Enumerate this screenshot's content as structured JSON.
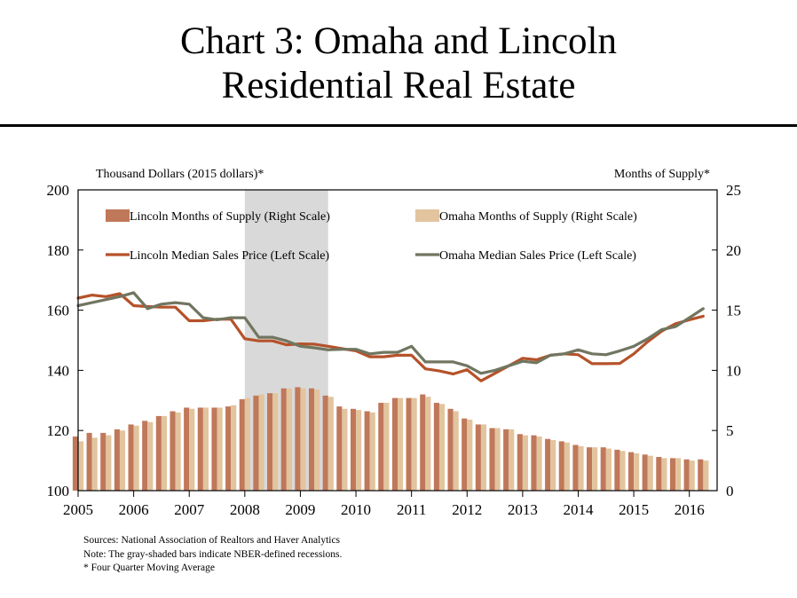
{
  "title_line1": "Chart 3: Omaha and Lincoln",
  "title_line2": "Residential Real Estate",
  "notes": {
    "sources": "Sources: National Association of Realtors and Haver Analytics",
    "note": "Note: The gray-shaded bars indicate NBER-defined recessions.",
    "footnote": "* Four Quarter Moving Average"
  },
  "colors": {
    "lincoln_bar": "#C0785A",
    "omaha_bar": "#E2C49E",
    "lincoln_line": "#B5522A",
    "omaha_line": "#707660",
    "recession": "#D9D9D9"
  },
  "chart_data": {
    "type": "bar+line",
    "ylabel_left": "Thousand Dollars (2015 dollars)*",
    "ylabel_right": "Months of Supply*",
    "ylim_left": [
      100,
      200
    ],
    "ylim_right": [
      0,
      25
    ],
    "yticks_left": [
      "100",
      "120",
      "140",
      "160",
      "180",
      "200"
    ],
    "yticks_right": [
      "0",
      "5",
      "10",
      "15",
      "20",
      "25"
    ],
    "xlim": [
      2005,
      2016.5
    ],
    "xticks": [
      "2005",
      "2006",
      "2007",
      "2008",
      "2009",
      "2010",
      "2011",
      "2012",
      "2013",
      "2014",
      "2015",
      "2016"
    ],
    "recession": [
      2008,
      2009.5
    ],
    "legend": {
      "lincoln_bar": "Lincoln Months of Supply (Right Scale)",
      "omaha_bar": "Omaha Months of Supply (Right Scale)",
      "lincoln_line": "Lincoln Median Sales Price (Left Scale)",
      "omaha_line": "Omaha Median Sales Price (Left Scale)"
    },
    "x": [
      2005,
      2005.25,
      2005.5,
      2005.75,
      2006,
      2006.25,
      2006.5,
      2006.75,
      2007,
      2007.25,
      2007.5,
      2007.75,
      2008,
      2008.25,
      2008.5,
      2008.75,
      2009,
      2009.25,
      2009.5,
      2009.75,
      2010,
      2010.25,
      2010.5,
      2010.75,
      2011,
      2011.25,
      2011.5,
      2011.75,
      2012,
      2012.25,
      2012.5,
      2012.75,
      2013,
      2013.25,
      2013.5,
      2013.75,
      2014,
      2014.25,
      2014.5,
      2014.75,
      2015,
      2015.25,
      2015.5,
      2015.75,
      2016,
      2016.25
    ],
    "series": [
      {
        "name": "Lincoln Months of Supply (Right Scale)",
        "type": "bar",
        "axis": "right",
        "values": [
          4.5,
          4.8,
          4.8,
          5.1,
          5.5,
          5.8,
          6.2,
          6.6,
          6.9,
          6.9,
          6.9,
          7.0,
          7.6,
          7.9,
          8.1,
          8.5,
          8.6,
          8.5,
          7.9,
          7.0,
          6.8,
          6.6,
          7.3,
          7.7,
          7.7,
          8.0,
          7.3,
          6.8,
          6.0,
          5.5,
          5.2,
          5.1,
          4.7,
          4.6,
          4.3,
          4.1,
          3.8,
          3.6,
          3.6,
          3.4,
          3.2,
          3.0,
          2.8,
          2.7,
          2.6,
          2.6
        ]
      },
      {
        "name": "Omaha Months of Supply (Right Scale)",
        "type": "bar",
        "axis": "right",
        "values": [
          4.1,
          4.4,
          4.6,
          5.0,
          5.4,
          5.7,
          6.2,
          6.5,
          6.8,
          6.9,
          6.9,
          7.1,
          7.7,
          8.0,
          8.1,
          8.5,
          8.5,
          8.4,
          7.8,
          6.8,
          6.7,
          6.5,
          7.3,
          7.7,
          7.7,
          7.8,
          7.2,
          6.6,
          5.9,
          5.5,
          5.2,
          5.1,
          4.6,
          4.5,
          4.2,
          4.0,
          3.7,
          3.6,
          3.5,
          3.3,
          3.1,
          2.9,
          2.7,
          2.7,
          2.5,
          2.5
        ]
      },
      {
        "name": "Lincoln Median Sales Price (Left Scale)",
        "type": "line",
        "axis": "left",
        "values": [
          164.0,
          165.0,
          164.5,
          165.5,
          161.5,
          161.2,
          161.0,
          161.0,
          156.5,
          156.5,
          157.0,
          157.0,
          150.5,
          149.8,
          149.8,
          148.5,
          148.8,
          148.7,
          148.0,
          147.2,
          146.5,
          144.5,
          144.5,
          145.0,
          145.0,
          140.5,
          139.8,
          138.8,
          140.2,
          136.5,
          139.0,
          141.5,
          144.0,
          143.5,
          145.0,
          145.5,
          145.2,
          142.2,
          142.2,
          142.3,
          145.5,
          149.5,
          153.0,
          155.5,
          156.8,
          158.0
        ]
      },
      {
        "name": "Omaha Median Sales Price (Left Scale)",
        "type": "line",
        "axis": "left",
        "values": [
          161.5,
          162.5,
          163.5,
          164.5,
          165.8,
          160.5,
          162.0,
          162.5,
          162.0,
          157.5,
          156.8,
          157.5,
          157.5,
          151.0,
          151.0,
          149.8,
          148.0,
          147.5,
          146.8,
          147.0,
          147.0,
          145.5,
          146.0,
          146.0,
          148.0,
          142.8,
          142.8,
          142.8,
          141.5,
          139.0,
          140.0,
          141.5,
          143.0,
          142.5,
          145.0,
          145.5,
          146.8,
          145.5,
          145.2,
          146.5,
          148.0,
          150.5,
          153.5,
          154.5,
          157.5,
          160.5
        ]
      }
    ]
  }
}
